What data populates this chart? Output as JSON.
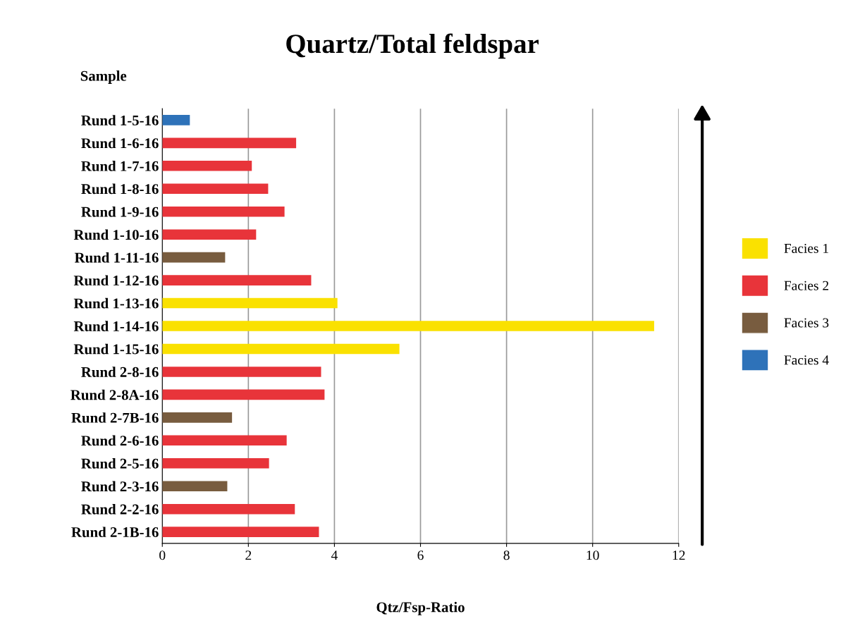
{
  "chart_data": {
    "type": "bar",
    "orientation": "horizontal",
    "title": "Quartz/Total feldspar",
    "ylabel": "Sample",
    "xlabel": "Qtz/Fsp-Ratio",
    "categories": [
      "Rund 1-5-16",
      "Rund 1-6-16",
      "Rund 1-7-16",
      "Rund 1-8-16",
      "Rund 1-9-16",
      "Rund 1-10-16",
      "Rund 1-11-16",
      "Rund 1-12-16",
      "Rund 1-13-16",
      "Rund 1-14-16",
      "Rund 1-15-16",
      "Rund 2-8-16",
      "Rund 2-8A-16",
      "Rund 2-7B-16",
      "Rund 2-6-16",
      "Rund 2-5-16",
      "Rund 2-3-16",
      "Rund 2-2-16",
      "Rund 2-1B-16"
    ],
    "series": [
      {
        "name": "Facies 1",
        "color": "#fae100",
        "values": [
          null,
          null,
          null,
          null,
          null,
          null,
          null,
          null,
          4.07,
          11.43,
          5.51,
          null,
          null,
          null,
          null,
          null,
          null,
          null,
          null
        ]
      },
      {
        "name": "Facies 2",
        "color": "#e8343a",
        "values": [
          null,
          3.11,
          2.08,
          2.46,
          2.84,
          2.18,
          null,
          3.46,
          null,
          null,
          null,
          3.69,
          3.77,
          null,
          2.89,
          2.48,
          null,
          3.08,
          3.64
        ]
      },
      {
        "name": "Facies 3",
        "color": "#785c3f",
        "values": [
          null,
          null,
          null,
          null,
          null,
          null,
          1.46,
          null,
          null,
          null,
          null,
          null,
          null,
          1.62,
          null,
          null,
          1.51,
          null,
          null
        ]
      },
      {
        "name": "Facies 4",
        "color": "#2e72b9",
        "values": [
          0.64,
          null,
          null,
          null,
          null,
          null,
          null,
          null,
          null,
          null,
          null,
          null,
          null,
          null,
          null,
          null,
          null,
          null,
          null
        ]
      }
    ],
    "xlim": [
      0,
      12
    ],
    "xticks": [
      0,
      2,
      4,
      6,
      8,
      10,
      12
    ],
    "grid": "x",
    "legend": "right"
  }
}
